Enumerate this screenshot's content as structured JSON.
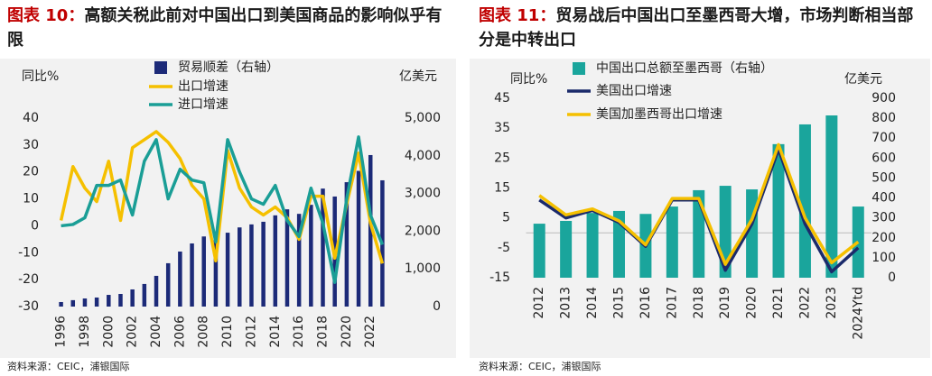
{
  "chart_data": [
    {
      "type": "combo",
      "label": "图表 10：",
      "title": "高额关税此前对中国出口到美国商品的影响似乎有限",
      "y_label": "同比%",
      "y2_label": "亿美元",
      "source": "资料来源：CEIC，浦银国际",
      "categories": [
        "1996",
        null,
        "1998",
        null,
        "2000",
        null,
        "2002",
        null,
        "2004",
        null,
        "2006",
        null,
        "2008",
        null,
        "2010",
        null,
        "2012",
        null,
        "2014",
        null,
        "2016",
        null,
        "2018",
        null,
        "2020",
        null,
        "2022",
        null
      ],
      "ylim": [
        -30,
        40
      ],
      "yticks": [
        -30,
        -20,
        -10,
        0,
        10,
        20,
        30,
        40
      ],
      "y2lim": [
        0,
        5000
      ],
      "y2ticks": [
        0,
        {
          "value": 1000,
          "label": "1,000"
        },
        {
          "value": 2000,
          "label": "2,000"
        },
        {
          "value": 3000,
          "label": "3,000"
        },
        {
          "value": 4000,
          "label": "4,000"
        },
        {
          "value": 5000,
          "label": "5,000"
        }
      ],
      "series": [
        {
          "name": "贸易顺差（右轴）",
          "type": "bar",
          "axis": "y2",
          "color": "#1c2a78",
          "values": [
            120,
            170,
            215,
            240,
            310,
            335,
            455,
            600,
            815,
            1150,
            1460,
            1675,
            1860,
            1770,
            1960,
            2100,
            2180,
            2250,
            2420,
            2580,
            2460,
            2700,
            3130,
            2920,
            3300,
            3600,
            4020,
            3350
          ]
        },
        {
          "name": "出口增速",
          "type": "line",
          "color": "#f5c000",
          "values": [
            2,
            22,
            14,
            9,
            24,
            2,
            29,
            32,
            35,
            31,
            25,
            15,
            10,
            -13,
            28,
            14,
            7,
            4,
            7,
            3,
            -5,
            11,
            11,
            -12,
            8,
            27,
            1,
            -14
          ]
        },
        {
          "name": "进口增速",
          "type": "line",
          "color": "#1a9e96",
          "values": [
            0,
            0.5,
            3,
            15,
            15,
            17,
            4,
            24,
            32,
            10,
            21,
            17,
            16,
            -6,
            32,
            20,
            10,
            8,
            15,
            2,
            -4,
            14,
            1,
            -21,
            10,
            33,
            4,
            -7
          ]
        }
      ]
    },
    {
      "type": "combo",
      "label": "图表 11：",
      "title": "贸易战后中国出口至墨西哥大增，市场判断相当部分是中转出口",
      "y_label": "同比%",
      "y2_label": "亿美元",
      "source": "资料来源：CEIC，浦银国际",
      "categories": [
        "2012",
        "2013",
        "2014",
        "2015",
        "2016",
        "2017",
        "2018",
        "2019",
        "2020",
        "2021",
        "2022",
        "2023",
        "2024Ytd"
      ],
      "ylim": [
        -15,
        45
      ],
      "yticks": [
        -15,
        -5,
        5,
        15,
        25,
        35,
        45
      ],
      "y2lim": [
        0,
        900
      ],
      "y2ticks": [
        0,
        100,
        200,
        300,
        400,
        500,
        600,
        700,
        800,
        900
      ],
      "series": [
        {
          "name": "中国出口总额至墨西哥（右轴）",
          "type": "bar",
          "axis": "y2",
          "color": "#1aa59c",
          "values": [
            271,
            285,
            325,
            335,
            320,
            357,
            439,
            461,
            443,
            670,
            769,
            814,
            357
          ]
        },
        {
          "name": "美国出口增速",
          "type": "line",
          "color": "#1b2a6b",
          "values": [
            11,
            5,
            7.5,
            3.5,
            -4.5,
            11,
            11,
            -12.5,
            3,
            28,
            3,
            -13,
            -5
          ]
        },
        {
          "name": "美国加墨西哥出口增速",
          "type": "line",
          "color": "#f5c000",
          "values": [
            12.5,
            6,
            8,
            4,
            -4,
            11.5,
            11.5,
            -10.5,
            4.5,
            29.5,
            5,
            -10,
            -3
          ]
        }
      ]
    }
  ]
}
